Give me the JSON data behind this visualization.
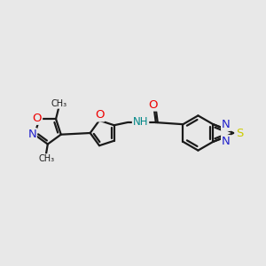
{
  "bg_color": "#e8e8e8",
  "bond_color": "#1a1a1a",
  "bond_width": 1.6,
  "atom_colors": {
    "O": "#ee0000",
    "N": "#2222cc",
    "S": "#cccc00",
    "C": "#1a1a1a"
  },
  "font_size": 8.5,
  "figsize": [
    3.0,
    3.0
  ],
  "dpi": 100,
  "xlim": [
    -3.0,
    4.5
  ],
  "ylim": [
    -1.8,
    1.8
  ]
}
